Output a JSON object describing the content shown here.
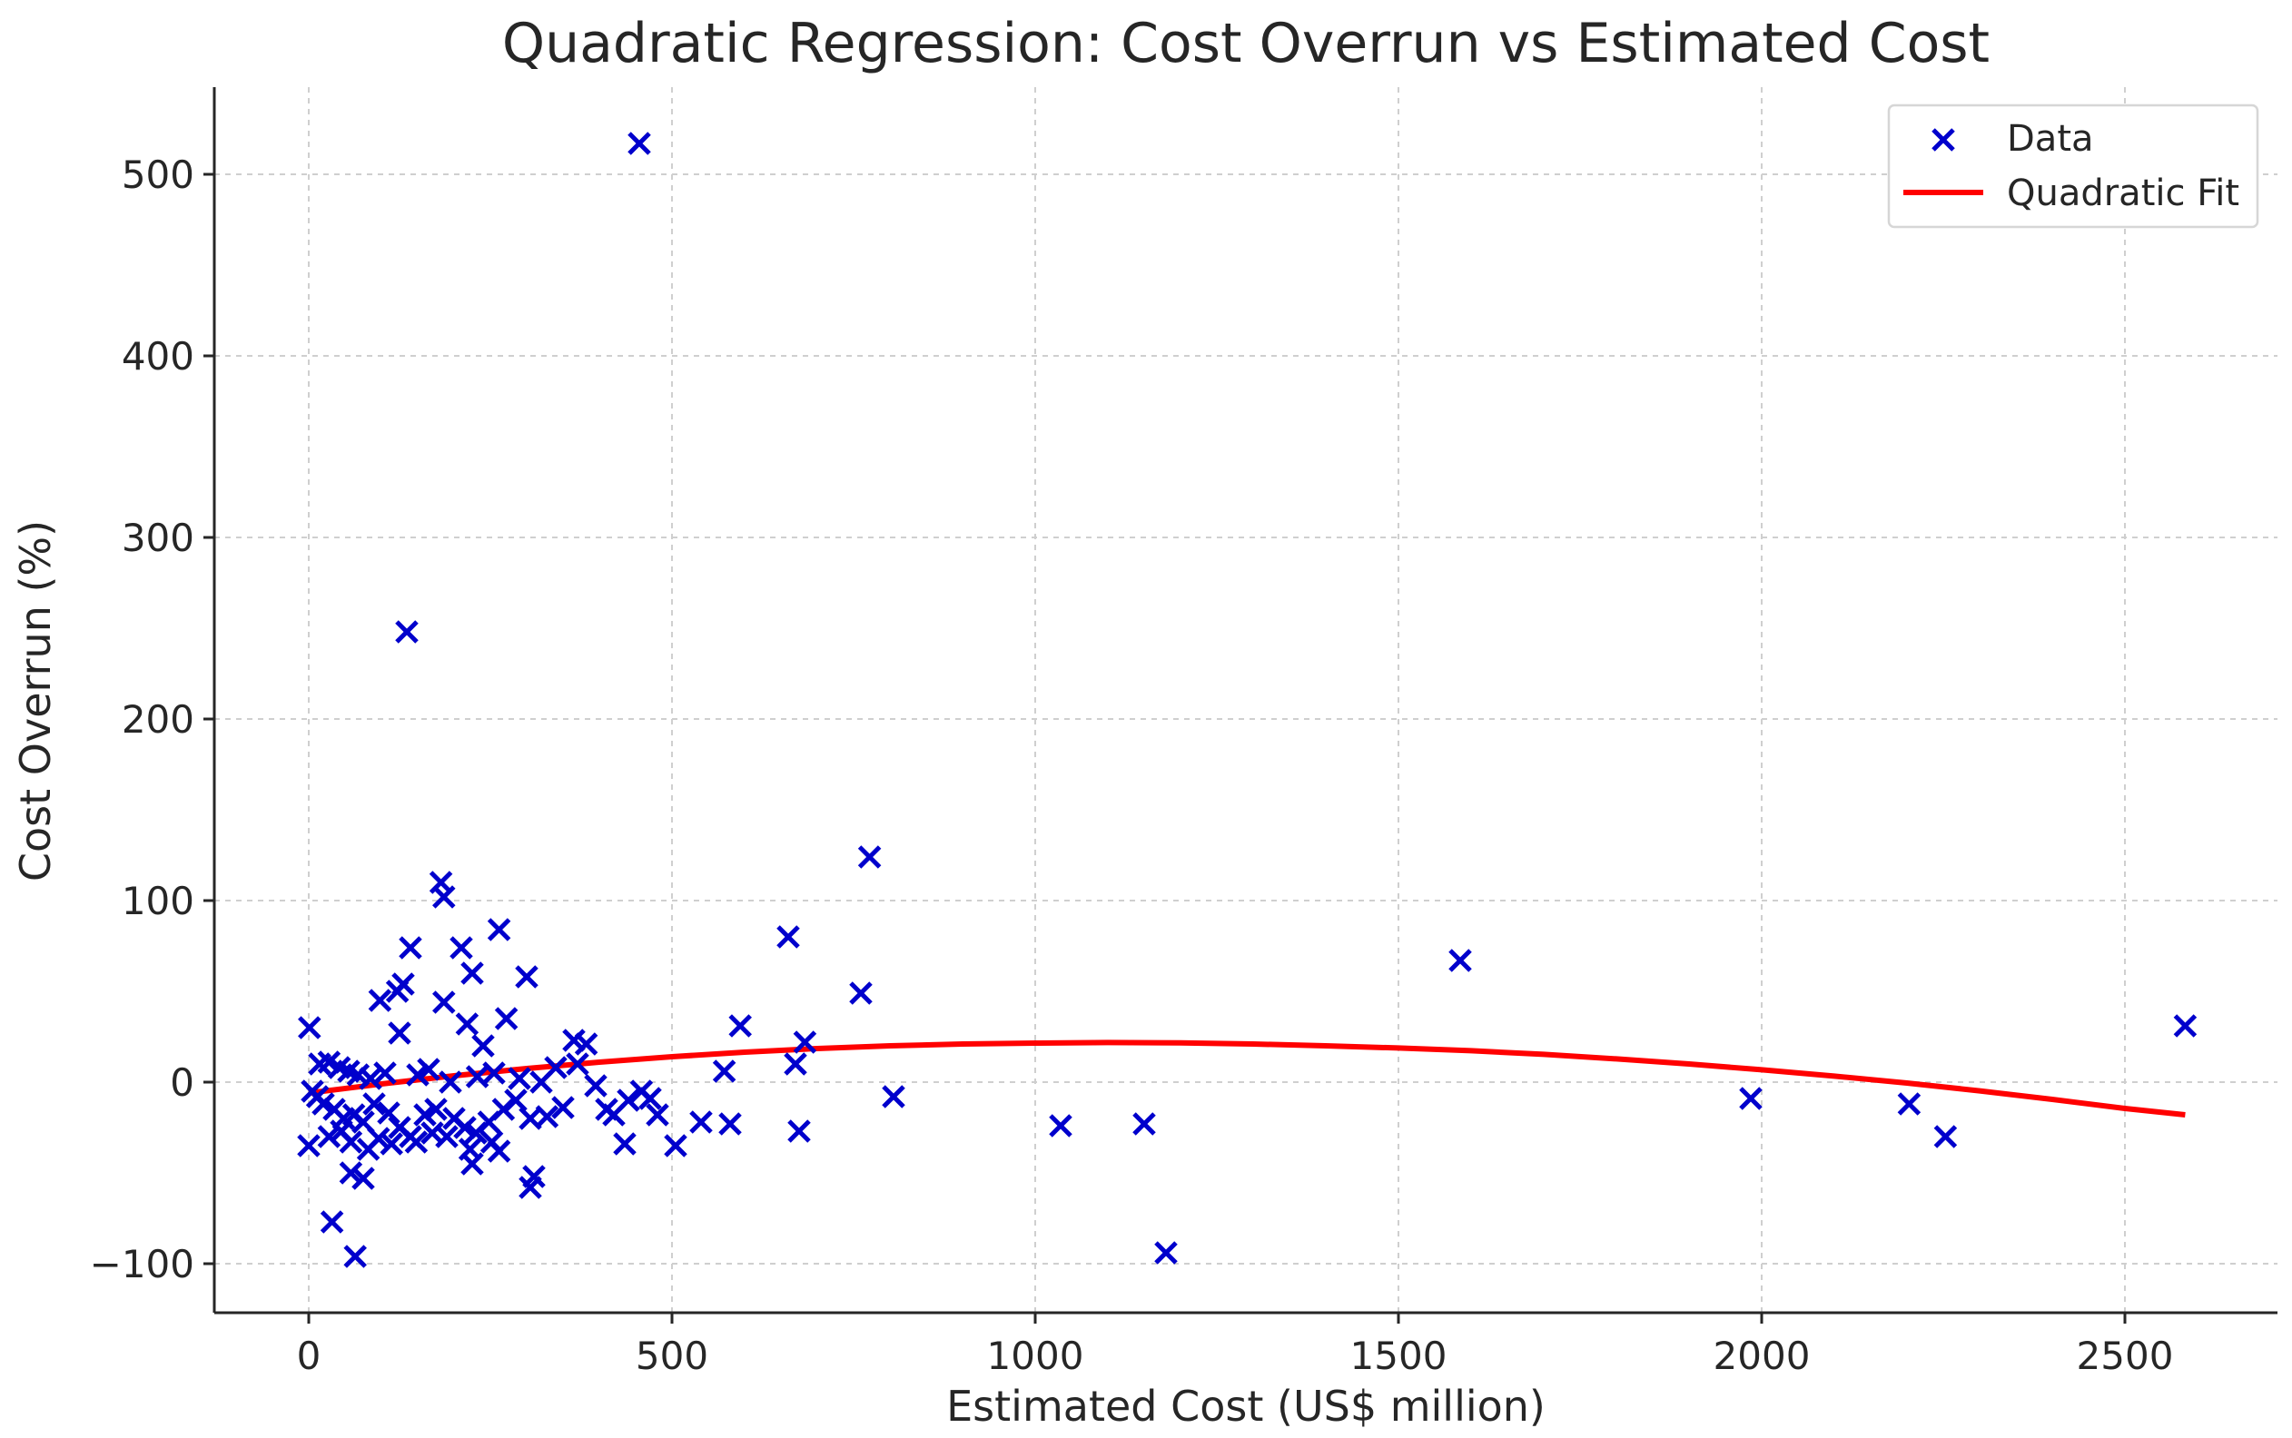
{
  "chart_data": {
    "type": "scatter",
    "title": "Quadratic Regression: Cost Overrun vs Estimated Cost",
    "xlabel": "Estimated Cost (US$ million)",
    "ylabel": "Cost Overrun (%)",
    "xlim": [
      -130,
      2710
    ],
    "ylim": [
      -127,
      548
    ],
    "xticks": [
      0,
      500,
      1000,
      1500,
      2000,
      2500
    ],
    "yticks": [
      -100,
      0,
      100,
      200,
      300,
      400,
      500
    ],
    "xtick_labels": [
      "0",
      "500",
      "1000",
      "1500",
      "2000",
      "2500"
    ],
    "ytick_labels": [
      "−100",
      "0",
      "100",
      "200",
      "300",
      "400",
      "500"
    ],
    "grid": true,
    "legend_position": "top-right",
    "colors": {
      "data": "#0000cc",
      "fit": "#ff0000",
      "text": "#262626"
    },
    "series": [
      {
        "name": "Data",
        "kind": "scatter",
        "marker": "x",
        "points": [
          [
            455,
            517
          ],
          [
            135,
            248
          ],
          [
            772,
            124
          ],
          [
            182,
            110
          ],
          [
            186,
            102
          ],
          [
            660,
            80
          ],
          [
            262,
            84
          ],
          [
            1585,
            67
          ],
          [
            140,
            74
          ],
          [
            210,
            74
          ],
          [
            225,
            60
          ],
          [
            300,
            58
          ],
          [
            130,
            54
          ],
          [
            122,
            50
          ],
          [
            760,
            49
          ],
          [
            98,
            45
          ],
          [
            186,
            44
          ],
          [
            272,
            35
          ],
          [
            1,
            30
          ],
          [
            2583,
            31
          ],
          [
            594,
            31
          ],
          [
            218,
            32
          ],
          [
            125,
            27
          ],
          [
            365,
            23
          ],
          [
            382,
            21
          ],
          [
            683,
            22
          ],
          [
            240,
            20
          ],
          [
            670,
            10
          ],
          [
            572,
            6
          ],
          [
            15,
            10
          ],
          [
            28,
            11
          ],
          [
            42,
            8
          ],
          [
            55,
            6
          ],
          [
            68,
            4
          ],
          [
            85,
            2
          ],
          [
            105,
            5
          ],
          [
            150,
            4
          ],
          [
            165,
            7
          ],
          [
            195,
            0
          ],
          [
            232,
            3
          ],
          [
            255,
            5
          ],
          [
            290,
            2
          ],
          [
            320,
            0
          ],
          [
            340,
            8
          ],
          [
            370,
            10
          ],
          [
            395,
            -2
          ],
          [
            458,
            -5
          ],
          [
            470,
            -9
          ],
          [
            5,
            -5
          ],
          [
            12,
            -8
          ],
          [
            20,
            -12
          ],
          [
            35,
            -15
          ],
          [
            48,
            -20
          ],
          [
            62,
            -18
          ],
          [
            75,
            -22
          ],
          [
            90,
            -12
          ],
          [
            110,
            -17
          ],
          [
            125,
            -25
          ],
          [
            140,
            -30
          ],
          [
            160,
            -18
          ],
          [
            175,
            -15
          ],
          [
            200,
            -20
          ],
          [
            215,
            -25
          ],
          [
            230,
            -28
          ],
          [
            248,
            -22
          ],
          [
            268,
            -15
          ],
          [
            285,
            -10
          ],
          [
            305,
            -20
          ],
          [
            328,
            -19
          ],
          [
            350,
            -14
          ],
          [
            410,
            -15
          ],
          [
            420,
            -18
          ],
          [
            440,
            -10
          ],
          [
            480,
            -18
          ],
          [
            540,
            -22
          ],
          [
            580,
            -23
          ],
          [
            805,
            -8
          ],
          [
            1985,
            -9
          ],
          [
            2203,
            -12
          ],
          [
            2253,
            -30
          ],
          [
            1035,
            -24
          ],
          [
            1150,
            -23
          ],
          [
            675,
            -27
          ],
          [
            0,
            -35
          ],
          [
            28,
            -30
          ],
          [
            45,
            -27
          ],
          [
            58,
            -33
          ],
          [
            82,
            -37
          ],
          [
            96,
            -31
          ],
          [
            114,
            -34
          ],
          [
            148,
            -33
          ],
          [
            170,
            -28
          ],
          [
            190,
            -30
          ],
          [
            222,
            -37
          ],
          [
            252,
            -33
          ],
          [
            262,
            -38
          ],
          [
            435,
            -34
          ],
          [
            505,
            -35
          ],
          [
            225,
            -45
          ],
          [
            58,
            -50
          ],
          [
            75,
            -53
          ],
          [
            310,
            -52
          ],
          [
            305,
            -58
          ],
          [
            32,
            -77
          ],
          [
            64,
            -96
          ],
          [
            1180,
            -94
          ]
        ]
      },
      {
        "name": "Quadratic Fit",
        "kind": "line",
        "points": [
          [
            0,
            -6
          ],
          [
            100,
            -1
          ],
          [
            200,
            3.5
          ],
          [
            300,
            7.5
          ],
          [
            400,
            11
          ],
          [
            500,
            14
          ],
          [
            600,
            16.5
          ],
          [
            700,
            18.5
          ],
          [
            800,
            20
          ],
          [
            900,
            21
          ],
          [
            1000,
            21.5
          ],
          [
            1100,
            21.8
          ],
          [
            1200,
            21.6
          ],
          [
            1300,
            21
          ],
          [
            1400,
            20
          ],
          [
            1500,
            18.8
          ],
          [
            1600,
            17.3
          ],
          [
            1700,
            15.3
          ],
          [
            1800,
            12.8
          ],
          [
            1900,
            10
          ],
          [
            2000,
            6.8
          ],
          [
            2100,
            3.3
          ],
          [
            2200,
            -0.5
          ],
          [
            2300,
            -4.8
          ],
          [
            2400,
            -9.5
          ],
          [
            2500,
            -14.5
          ],
          [
            2583,
            -18
          ]
        ]
      }
    ]
  }
}
